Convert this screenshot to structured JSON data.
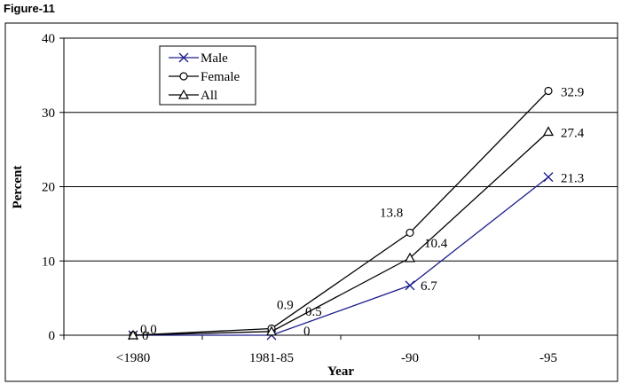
{
  "figure_label": "Figure-11",
  "chart_data": {
    "type": "line",
    "title": "",
    "xlabel": "Year",
    "ylabel": "Percent",
    "categories": [
      "<1980",
      "1981-85",
      "-90",
      "-95"
    ],
    "ylim": [
      0,
      40
    ],
    "yticks": [
      "0",
      "10",
      "20",
      "30",
      "40"
    ],
    "grid": "horizontal",
    "legend_position": "top-left",
    "series": [
      {
        "name": "Male",
        "marker": "x",
        "color": "#1c1c8c",
        "values": [
          0,
          0,
          6.7,
          21.3
        ],
        "labels": [
          "0",
          "0",
          "6.7",
          "21.3"
        ]
      },
      {
        "name": "Female",
        "marker": "circle",
        "color": "#000000",
        "values": [
          0,
          0.9,
          13.8,
          32.9
        ],
        "labels": [
          "0.0",
          "0.9",
          "13.8",
          "32.9"
        ]
      },
      {
        "name": "All",
        "marker": "triangle",
        "color": "#000000",
        "values": [
          0,
          0.5,
          10.4,
          27.4
        ],
        "labels": [
          "",
          "0.5",
          "10.4",
          "27.4"
        ]
      }
    ]
  }
}
